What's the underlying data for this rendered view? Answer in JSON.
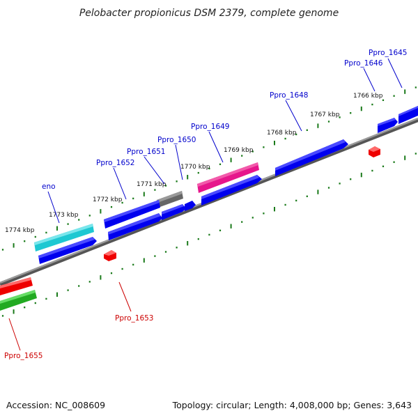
{
  "title": "Pelobacter propionicus DSM 2379, complete genome",
  "footer": {
    "accession": "Accession: NC_008609",
    "summary": "Topology: circular; Length: 4,008,000 bp; Genes: 3,643"
  },
  "colors": {
    "label_blue": "#0000cc",
    "label_red": "#cc0000",
    "tick_green": "#1a7a1a",
    "backbone": "#808080"
  },
  "ticks": [
    {
      "kbp": 1766,
      "label": "1766 kbp"
    },
    {
      "kbp": 1767,
      "label": "1767 kbp"
    },
    {
      "kbp": 1768,
      "label": "1768 kbp"
    },
    {
      "kbp": 1769,
      "label": "1769 kbp"
    },
    {
      "kbp": 1770,
      "label": "1770 kbp"
    },
    {
      "kbp": 1771,
      "label": "1771 kbp"
    },
    {
      "kbp": 1772,
      "label": "1772 kbp"
    },
    {
      "kbp": 1773,
      "label": "1773 kbp"
    },
    {
      "kbp": 1774,
      "label": "1774 kbp"
    }
  ],
  "genes": [
    {
      "name": "Ppro_1645",
      "strand": "+",
      "color": "#0000ee",
      "label_color": "blue"
    },
    {
      "name": "Ppro_1646",
      "strand": "+",
      "color": "#0000ee",
      "label_color": "blue"
    },
    {
      "name": "Ppro_1648",
      "strand": "+",
      "color": "#0000ee",
      "label_color": "blue"
    },
    {
      "name": "Ppro_1649",
      "strand": "+",
      "color": "#e6168c",
      "label_color": "blue"
    },
    {
      "name": "Ppro_1650",
      "strand": "+",
      "color": "#0000ee",
      "label_color": "blue"
    },
    {
      "name": "Ppro_1651",
      "strand": "+",
      "color": "#666666",
      "label_color": "blue"
    },
    {
      "name": "Ppro_1652",
      "strand": "+",
      "color": "#0000ee",
      "label_color": "blue"
    },
    {
      "name": "eno",
      "strand": "+",
      "color": "#1ec8d2",
      "label_color": "blue"
    },
    {
      "name": "Ppro_1653",
      "strand": "-",
      "color": "#ee0000",
      "label_color": "red"
    },
    {
      "name": "Ppro_1655",
      "strand": "-",
      "color": "#ee0000",
      "label_color": "red"
    }
  ]
}
